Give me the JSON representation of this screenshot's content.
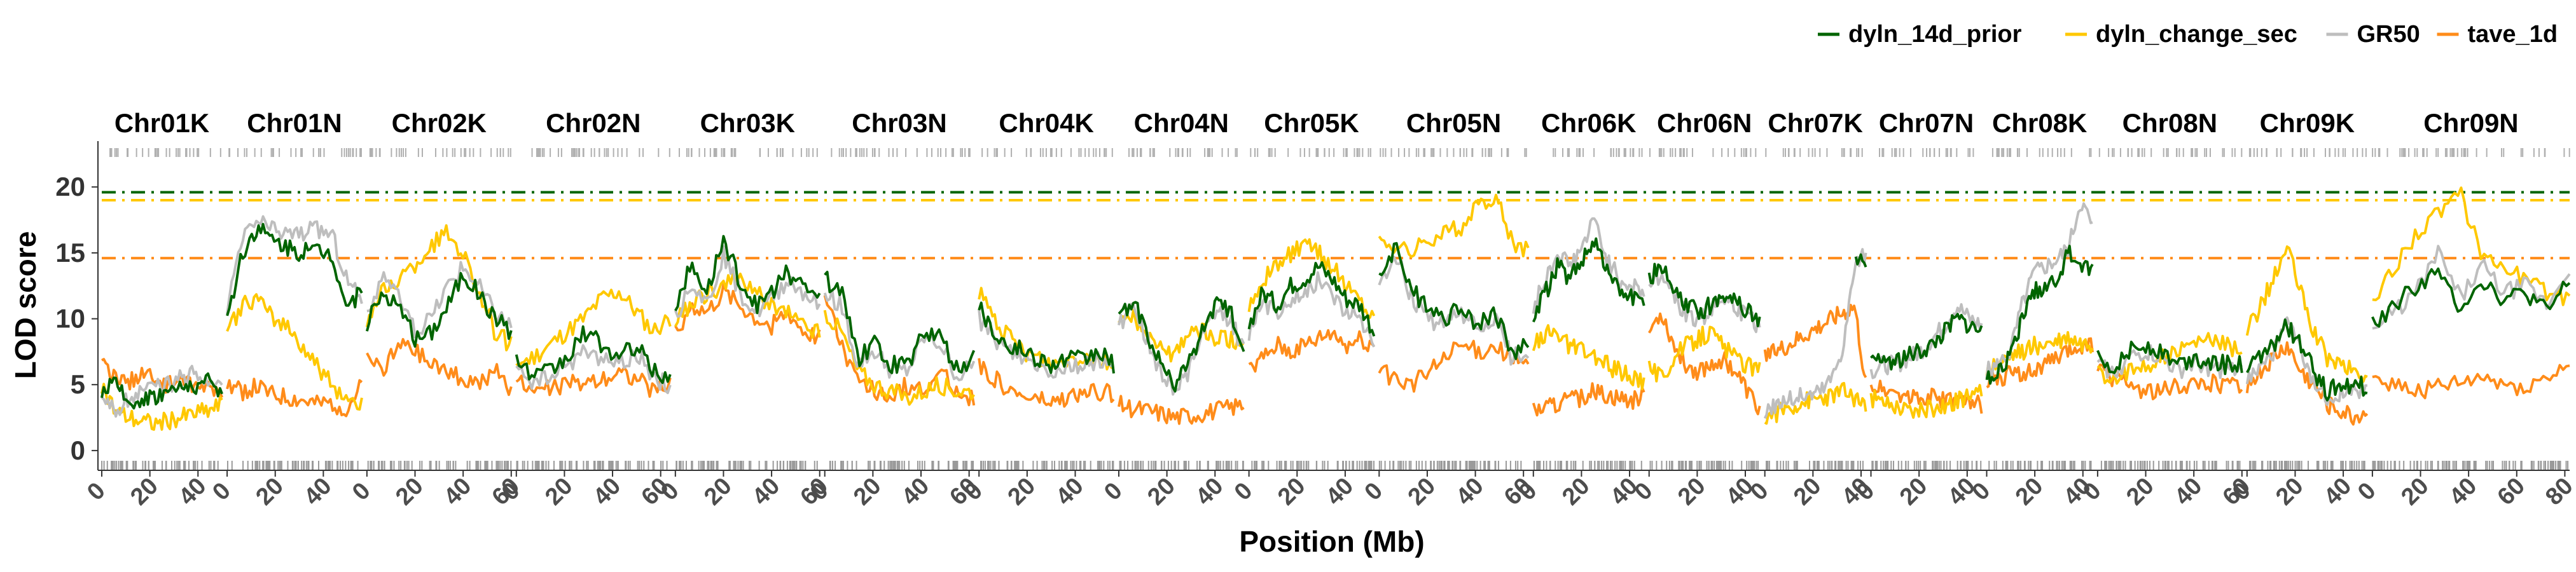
{
  "chart_data": {
    "type": "line",
    "title": "",
    "xlabel": "Position (Mb)",
    "ylabel": "LOD score",
    "ylim": [
      -1.5,
      23
    ],
    "yticks": [
      0,
      5,
      10,
      15,
      20
    ],
    "grid": false,
    "legend_position": "top-right",
    "chromosomes": [
      {
        "name": "Chr01K",
        "length": 50,
        "ticks": [
          0,
          20,
          40
        ]
      },
      {
        "name": "Chr01N",
        "length": 56,
        "ticks": [
          0,
          20,
          40
        ]
      },
      {
        "name": "Chr02K",
        "length": 60,
        "ticks": [
          0,
          20,
          40,
          60
        ]
      },
      {
        "name": "Chr02N",
        "length": 64,
        "ticks": [
          0,
          20,
          40,
          60
        ]
      },
      {
        "name": "Chr03K",
        "length": 60,
        "ticks": [
          0,
          20,
          40,
          60
        ]
      },
      {
        "name": "Chr03N",
        "length": 62,
        "ticks": [
          0,
          20,
          40,
          60
        ]
      },
      {
        "name": "Chr04K",
        "length": 56,
        "ticks": [
          0,
          20,
          40
        ]
      },
      {
        "name": "Chr04N",
        "length": 52,
        "ticks": [
          0,
          20,
          40
        ]
      },
      {
        "name": "Chr05K",
        "length": 52,
        "ticks": [
          0,
          20,
          40
        ]
      },
      {
        "name": "Chr05N",
        "length": 62,
        "ticks": [
          0,
          20,
          40,
          60
        ]
      },
      {
        "name": "Chr06K",
        "length": 46,
        "ticks": [
          0,
          20,
          40
        ]
      },
      {
        "name": "Chr06N",
        "length": 46,
        "ticks": [
          0,
          20,
          40
        ]
      },
      {
        "name": "Chr07K",
        "length": 42,
        "ticks": [
          0,
          20,
          40
        ]
      },
      {
        "name": "Chr07N",
        "length": 46,
        "ticks": [
          0,
          20,
          40
        ]
      },
      {
        "name": "Chr08K",
        "length": 44,
        "ticks": [
          0,
          20,
          40
        ]
      },
      {
        "name": "Chr08N",
        "length": 60,
        "ticks": [
          0,
          20,
          40,
          60
        ]
      },
      {
        "name": "Chr09K",
        "length": 50,
        "ticks": [
          0,
          20,
          40
        ]
      },
      {
        "name": "Chr09N",
        "length": 82,
        "ticks": [
          0,
          20,
          40,
          60,
          80
        ]
      }
    ],
    "series": [
      {
        "name": "dyln_14d_prior",
        "color": "#006400",
        "threshold": 19.6,
        "profiles": [
          [
            4.5,
            5.0,
            3.5,
            4.0,
            4.2,
            4.5,
            4.8,
            5.0,
            5.2,
            4.5
          ],
          [
            10.0,
            15.0,
            17.0,
            16.0,
            15.5,
            15.0,
            15.2,
            15.0,
            11.0,
            12.0
          ],
          [
            9.5,
            12.0,
            11.0,
            8.5,
            9.0,
            11.0,
            13.5,
            12.0,
            10.0,
            9.0
          ],
          [
            7.0,
            5.5,
            6.0,
            7.0,
            9.0,
            8.0,
            7.0,
            8.0,
            6.0,
            5.5
          ],
          [
            11.0,
            14.0,
            12.0,
            16.0,
            13.0,
            11.0,
            12.0,
            13.5,
            12.5,
            11.5
          ],
          [
            13.0,
            12.0,
            7.0,
            8.0,
            6.5,
            6.5,
            9.0,
            8.5,
            6.0,
            7.0
          ],
          [
            11.0,
            9.0,
            8.0,
            7.5,
            7.0,
            6.5,
            7.0,
            6.8,
            7.5,
            6.5
          ],
          [
            10.0,
            11.5,
            9.0,
            6.5,
            5.0,
            6.5,
            9.0,
            11.0,
            10.5,
            8.0
          ],
          [
            9.5,
            12.0,
            11.0,
            12.5,
            13.0,
            14.0,
            13.0,
            11.5,
            11.0,
            9.0
          ],
          [
            13.0,
            15.5,
            12.0,
            11.0,
            10.0,
            11.0,
            9.5,
            10.5,
            7.5,
            8.0
          ],
          [
            10.0,
            12.0,
            14.0,
            13.0,
            14.5,
            16.0,
            13.5,
            12.0,
            11.5,
            11.0
          ],
          [
            13.0,
            14.0,
            12.0,
            11.0,
            10.5,
            11.0,
            12.0,
            11.5,
            10.5,
            10.0
          ],
          [
            null,
            null,
            null,
            null,
            null,
            null,
            null,
            null,
            15.0,
            14.0
          ],
          [
            6.5,
            7.0,
            6.8,
            7.2,
            7.5,
            8.0,
            9.0,
            10.0,
            9.5,
            9.0
          ],
          [
            5.5,
            6.0,
            7.0,
            10.0,
            12.0,
            12.5,
            13.0,
            15.0,
            14.0,
            13.5
          ],
          [
            7.0,
            6.5,
            7.5,
            8.0,
            7.5,
            6.5,
            7.0,
            6.8,
            6.5,
            6.5
          ],
          [
            6.0,
            7.0,
            8.0,
            9.5,
            8.0,
            6.0,
            4.5,
            5.0,
            5.0,
            4.8
          ],
          [
            9.5,
            11.0,
            12.5,
            13.5,
            11.0,
            13.0,
            11.5,
            12.0,
            10.5,
            13.0
          ]
        ]
      },
      {
        "name": "dyln_change_sec",
        "color": "#FFC800",
        "threshold": 19.0,
        "profiles": [
          [
            5.0,
            3.0,
            2.5,
            2.2,
            2.0,
            2.3,
            2.5,
            2.8,
            3.0,
            3.5
          ],
          [
            9.0,
            11.0,
            11.5,
            10.0,
            9.5,
            8.0,
            6.5,
            5.0,
            4.0,
            3.5
          ],
          [
            10.0,
            12.0,
            13.0,
            14.0,
            15.5,
            16.5,
            15.0,
            12.0,
            9.0,
            8.0
          ],
          [
            6.5,
            7.0,
            8.0,
            9.0,
            10.0,
            11.5,
            12.0,
            10.5,
            9.0,
            10.0
          ],
          [
            10.0,
            11.0,
            12.0,
            12.5,
            13.0,
            12.0,
            11.0,
            10.5,
            9.5,
            9.0
          ],
          [
            10.5,
            9.0,
            6.0,
            5.0,
            4.5,
            4.0,
            4.5,
            5.0,
            4.5,
            4.5
          ],
          [
            12.0,
            10.0,
            8.5,
            7.5,
            7.0,
            6.5,
            7.0,
            7.2,
            7.0,
            6.5
          ],
          [
            9.5,
            10.0,
            9.0,
            8.0,
            7.0,
            9.0,
            9.0,
            8.5,
            8.5,
            8.0
          ],
          [
            11.0,
            13.0,
            14.0,
            15.0,
            15.5,
            15.0,
            14.0,
            12.5,
            11.5,
            10.0
          ],
          [
            16.0,
            15.5,
            15.0,
            16.0,
            16.5,
            17.0,
            18.5,
            19.5,
            16.0,
            15.0
          ],
          [
            8.0,
            9.0,
            8.5,
            8.0,
            7.5,
            7.0,
            6.5,
            6.0,
            5.5,
            5.0
          ],
          [
            6.5,
            5.5,
            7.0,
            8.0,
            8.5,
            9.0,
            8.0,
            7.0,
            6.5,
            6.0
          ],
          [
            2.5,
            2.8,
            3.2,
            3.5,
            3.8,
            4.0,
            4.2,
            4.5,
            4.0,
            3.5
          ],
          [
            4.0,
            3.8,
            3.5,
            3.2,
            3.0,
            3.2,
            3.5,
            3.8,
            4.0,
            4.5
          ],
          [
            6.0,
            6.5,
            7.0,
            7.5,
            8.0,
            8.0,
            8.2,
            8.5,
            8.0,
            8.0
          ],
          [
            6.0,
            5.5,
            6.0,
            6.5,
            7.0,
            7.5,
            8.0,
            8.5,
            8.0,
            7.5
          ],
          [
            9.0,
            11.0,
            13.0,
            15.5,
            12.0,
            9.0,
            7.0,
            6.5,
            6.0,
            5.5
          ],
          [
            11.0,
            14.0,
            16.5,
            18.0,
            19.5,
            15.0,
            14.0,
            13.0,
            12.0,
            11.5
          ]
        ]
      },
      {
        "name": "GR50",
        "color": "#BEBEBE",
        "threshold": null,
        "profiles": [
          [
            3.5,
            3.0,
            4.0,
            4.5,
            4.8,
            5.0,
            5.5,
            5.8,
            5.0,
            5.5
          ],
          [
            10.5,
            16.0,
            17.5,
            16.8,
            16.5,
            16.5,
            16.8,
            16.5,
            13.0,
            11.5
          ],
          [
            10.0,
            13.5,
            11.5,
            9.0,
            10.0,
            12.5,
            14.0,
            12.5,
            10.5,
            9.5
          ],
          [
            6.5,
            5.0,
            5.5,
            6.5,
            7.5,
            7.0,
            6.5,
            7.5,
            5.5,
            5.0
          ],
          [
            10.0,
            13.0,
            11.0,
            15.0,
            12.0,
            10.5,
            11.5,
            13.0,
            12.0,
            11.0
          ],
          [
            12.0,
            11.0,
            6.5,
            7.5,
            6.0,
            6.0,
            8.5,
            8.0,
            5.5,
            6.5
          ],
          [
            10.0,
            8.5,
            7.5,
            7.0,
            6.5,
            6.0,
            6.5,
            6.3,
            7.0,
            6.0
          ],
          [
            9.5,
            11.0,
            8.5,
            6.0,
            4.5,
            6.0,
            8.5,
            10.5,
            10.0,
            7.5
          ],
          [
            9.0,
            11.0,
            10.5,
            11.5,
            12.0,
            13.0,
            12.0,
            10.5,
            10.0,
            8.5
          ],
          [
            12.5,
            15.0,
            11.5,
            10.0,
            9.5,
            10.5,
            9.0,
            10.0,
            7.0,
            7.5
          ],
          [
            11.0,
            13.0,
            15.0,
            14.0,
            15.5,
            17.5,
            14.5,
            13.0,
            12.5,
            12.0
          ],
          [
            12.5,
            13.5,
            11.5,
            10.5,
            10.0,
            10.5,
            11.5,
            11.0,
            10.0,
            9.5
          ],
          [
            3.0,
            3.5,
            3.8,
            4.0,
            4.2,
            4.5,
            5.5,
            8.0,
            14.0,
            15.0
          ],
          [
            6.0,
            6.5,
            6.5,
            7.0,
            7.5,
            8.5,
            9.5,
            11.0,
            10.0,
            9.5
          ],
          [
            6.0,
            6.5,
            7.5,
            11.0,
            13.5,
            14.0,
            14.5,
            15.5,
            19.0,
            17.0
          ],
          [
            6.5,
            6.0,
            7.0,
            7.5,
            7.0,
            6.0,
            6.5,
            6.3,
            6.0,
            6.0
          ],
          [
            5.5,
            6.5,
            7.5,
            10.0,
            7.5,
            5.0,
            4.0,
            4.5,
            4.5,
            4.3
          ],
          [
            9.0,
            10.5,
            12.0,
            15.0,
            11.5,
            14.0,
            12.0,
            12.5,
            11.0,
            14.0
          ]
        ]
      },
      {
        "name": "tave_1d",
        "color": "#FF8C1A",
        "threshold": 14.6,
        "profiles": [
          [
            6.5,
            5.5,
            5.0,
            6.0,
            5.5,
            5.0,
            5.5,
            4.5,
            5.0,
            4.0
          ],
          [
            5.0,
            4.5,
            4.8,
            4.2,
            4.0,
            3.8,
            3.5,
            3.6,
            3.2,
            5.0
          ],
          [
            7.0,
            6.0,
            8.0,
            7.5,
            6.5,
            6.0,
            5.5,
            5.0,
            6.0,
            4.5
          ],
          [
            5.5,
            4.5,
            4.8,
            5.0,
            5.2,
            5.5,
            6.0,
            5.5,
            4.5,
            5.0
          ],
          [
            9.0,
            11.0,
            10.5,
            12.0,
            11.0,
            10.0,
            9.5,
            10.5,
            9.0,
            8.5
          ],
          [
            12.0,
            8.0,
            5.0,
            4.5,
            4.0,
            5.0,
            4.5,
            6.0,
            4.5,
            4.0
          ],
          [
            6.5,
            5.5,
            4.5,
            4.0,
            3.8,
            3.5,
            4.0,
            4.2,
            4.5,
            4.3
          ],
          [
            3.5,
            3.2,
            3.0,
            2.8,
            2.5,
            2.6,
            2.8,
            3.0,
            3.2,
            3.5
          ],
          [
            6.0,
            7.0,
            8.0,
            7.5,
            8.0,
            8.5,
            9.0,
            8.0,
            8.5,
            8.0
          ],
          [
            6.0,
            5.5,
            5.0,
            6.0,
            7.0,
            8.0,
            7.5,
            8.0,
            7.0,
            6.5
          ],
          [
            3.0,
            3.2,
            3.5,
            3.8,
            4.0,
            4.5,
            4.2,
            4.0,
            3.8,
            4.2
          ],
          [
            9.0,
            10.5,
            8.0,
            6.5,
            6.0,
            6.5,
            7.0,
            6.0,
            4.5,
            3.0
          ],
          [
            7.0,
            7.5,
            8.0,
            8.5,
            9.0,
            9.5,
            10.0,
            10.5,
            11.0,
            5.0
          ],
          [
            5.0,
            4.8,
            4.5,
            4.2,
            4.0,
            4.0,
            3.8,
            3.8,
            3.5,
            3.5
          ],
          [
            5.5,
            5.5,
            5.8,
            6.0,
            6.0,
            6.5,
            7.0,
            7.5,
            8.0,
            8.0
          ],
          [
            6.0,
            5.5,
            5.0,
            4.5,
            4.5,
            4.8,
            5.0,
            5.2,
            5.0,
            5.0
          ],
          [
            5.0,
            6.0,
            7.0,
            8.0,
            6.0,
            5.0,
            3.5,
            3.0,
            2.5,
            3.0
          ],
          [
            5.5,
            5.0,
            4.5,
            4.8,
            5.0,
            5.5,
            5.0,
            4.8,
            5.5,
            6.5
          ]
        ]
      }
    ]
  }
}
